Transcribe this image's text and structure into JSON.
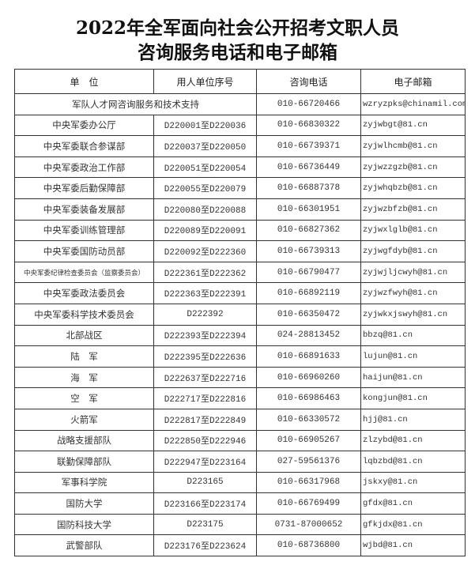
{
  "title": {
    "line1": "2022年全军面向社会公开招考文职人员",
    "line2": "咨询服务电话和电子邮箱"
  },
  "table": {
    "headers": [
      "单　位",
      "用人单位序号",
      "咨询电话",
      "电子邮箱"
    ],
    "support_row": {
      "unit": "军队人才网咨询服务和技术支持",
      "phone": "010-66720466",
      "email": "wzryzpks@chinamil.com.cn"
    },
    "rows": [
      {
        "unit": "中央军委办公厅",
        "code": "D220001至D220036",
        "phone": "010-66830322",
        "email": "zyjwbgt@81.cn"
      },
      {
        "unit": "中央军委联合参谋部",
        "code": "D220037至D220050",
        "phone": "010-66739371",
        "email": "zyjwlhcmb@81.cn"
      },
      {
        "unit": "中央军委政治工作部",
        "code": "D220051至D220054",
        "phone": "010-66736449",
        "email": "zyjwzzgzb@81.cn"
      },
      {
        "unit": "中央军委后勤保障部",
        "code": "D220055至D220079",
        "phone": "010-66887378",
        "email": "zyjwhqbzb@81.cn"
      },
      {
        "unit": "中央军委装备发展部",
        "code": "D220080至D220088",
        "phone": "010-66301951",
        "email": "zyjwzbfzb@81.cn"
      },
      {
        "unit": "中央军委训练管理部",
        "code": "D220089至D220091",
        "phone": "010-66827362",
        "email": "zyjwxlglb@81.cn"
      },
      {
        "unit": "中央军委国防动员部",
        "code": "D220092至D222360",
        "phone": "010-66739313",
        "email": "zyjwgfdyb@81.cn"
      },
      {
        "unit": "中央军委纪律检查委员会（监察委员会）",
        "code": "D222361至D222362",
        "phone": "010-66790477",
        "email": "zyjwjljcwyh@81.cn"
      },
      {
        "unit": "中央军委政法委员会",
        "code": "D222363至D222391",
        "phone": "010-66892119",
        "email": "zyjwzfwyh@81.cn"
      },
      {
        "unit": "中央军委科学技术委员会",
        "code": "D222392",
        "phone": "010-66350472",
        "email": "zyjwkxjswyh@81.cn"
      },
      {
        "unit": "北部战区",
        "code": "D222393至D222394",
        "phone": "024-28813452",
        "email": "bbzq@81.cn"
      },
      {
        "unit": "陆　军",
        "code": "D222395至D222636",
        "phone": "010-66891633",
        "email": "lujun@81.cn"
      },
      {
        "unit": "海　军",
        "code": "D222637至D222716",
        "phone": "010-66960260",
        "email": "haijun@81.cn"
      },
      {
        "unit": "空　军",
        "code": "D222717至D222816",
        "phone": "010-66986463",
        "email": "kongjun@81.cn"
      },
      {
        "unit": "火箭军",
        "code": "D222817至D222849",
        "phone": "010-66330572",
        "email": "hjj@81.cn"
      },
      {
        "unit": "战略支援部队",
        "code": "D222850至D222946",
        "phone": "010-66905267",
        "email": "zlzybd@81.cn"
      },
      {
        "unit": "联勤保障部队",
        "code": "D222947至D223164",
        "phone": "027-59561376",
        "email": "lqbzbd@81.cn"
      },
      {
        "unit": "军事科学院",
        "code": "D223165",
        "phone": "010-66317968",
        "email": "jskxy@81.cn"
      },
      {
        "unit": "国防大学",
        "code": "D223166至D223174",
        "phone": "010-66769499",
        "email": "gfdx@81.cn"
      },
      {
        "unit": "国防科技大学",
        "code": "D223175",
        "phone": "0731-87000652",
        "email": "gfkjdx@81.cn"
      },
      {
        "unit": "武警部队",
        "code": "D223176至D223624",
        "phone": "010-68736800",
        "email": "wjbd@81.cn"
      }
    ]
  }
}
